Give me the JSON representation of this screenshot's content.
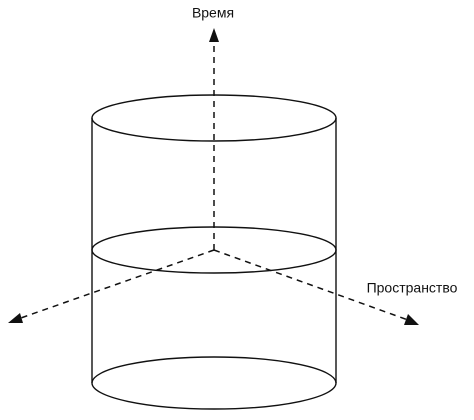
{
  "axes": {
    "time": "Время",
    "space": "Пространство"
  }
}
